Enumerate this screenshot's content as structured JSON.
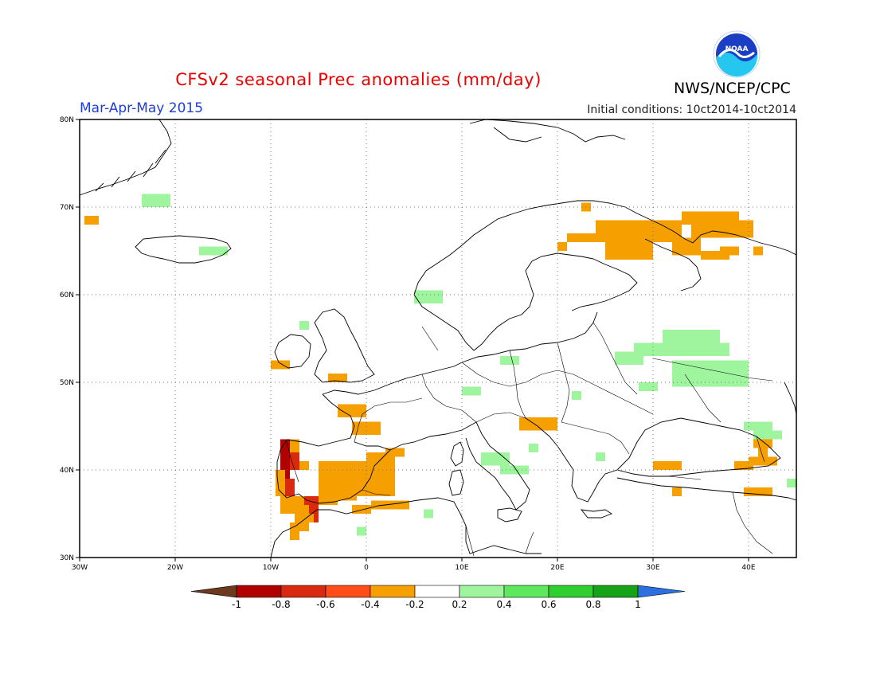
{
  "header": {
    "title": "CFSv2 seasonal Prec anomalies (mm/day)",
    "period": "Mar-Apr-May 2015",
    "initial_conditions": "Initial conditions: 10ct2014-10ct2014",
    "org": "NWS/NCEP/CPC",
    "logo_text": "NOAA"
  },
  "colors": {
    "title": "#ee0000",
    "period": "#1f3fd4",
    "brown": "#6b3a1f",
    "darkred": "#b00000",
    "red": "#d92a0f",
    "orangered": "#ff4d1a",
    "orange": "#f5a000",
    "white": "#ffffff",
    "palegreen": "#9ef59e",
    "green1": "#5ee85e",
    "green2": "#2fcf2f",
    "green3": "#17a317",
    "blue": "#2b6fe0"
  },
  "map": {
    "lon_range": [
      -30,
      45
    ],
    "lat_range": [
      30,
      80
    ],
    "lat_labels": [
      "30N",
      "40N",
      "50N",
      "60N",
      "70N",
      "80N"
    ],
    "lon_labels": [
      "30W",
      "20W",
      "10W",
      "0",
      "10E",
      "20E",
      "30E",
      "40E"
    ],
    "anomaly_cells": [
      {
        "lon": -29.5,
        "lat": 69,
        "w": 1.5,
        "h": 1,
        "c": "orange"
      },
      {
        "lon": -23.5,
        "lat": 71.5,
        "w": 3,
        "h": 1.5,
        "c": "palegreen"
      },
      {
        "lon": -17.5,
        "lat": 65.5,
        "w": 3,
        "h": 1,
        "c": "palegreen"
      },
      {
        "lon": 5,
        "lat": 60.5,
        "w": 3,
        "h": 1.5,
        "c": "palegreen"
      },
      {
        "lon": -7,
        "lat": 57,
        "w": 1,
        "h": 1,
        "c": "palegreen"
      },
      {
        "lon": -10,
        "lat": 52.5,
        "w": 2,
        "h": 1,
        "c": "orange"
      },
      {
        "lon": -4,
        "lat": 51,
        "w": 2,
        "h": 1,
        "c": "orange"
      },
      {
        "lon": -3,
        "lat": 47.5,
        "w": 3,
        "h": 1.5,
        "c": "orange"
      },
      {
        "lon": -1.5,
        "lat": 45.5,
        "w": 3,
        "h": 1.5,
        "c": "orange"
      },
      {
        "lon": 10,
        "lat": 49.5,
        "w": 2,
        "h": 1,
        "c": "palegreen"
      },
      {
        "lon": 14,
        "lat": 53,
        "w": 2,
        "h": 1,
        "c": "palegreen"
      },
      {
        "lon": 16,
        "lat": 46,
        "w": 4,
        "h": 1.5,
        "c": "orange"
      },
      {
        "lon": 12,
        "lat": 42,
        "w": 3,
        "h": 1.5,
        "c": "palegreen"
      },
      {
        "lon": 14,
        "lat": 40.5,
        "w": 3,
        "h": 1,
        "c": "palegreen"
      },
      {
        "lon": 17,
        "lat": 43,
        "w": 1,
        "h": 1,
        "c": "palegreen"
      },
      {
        "lon": 24,
        "lat": 42,
        "w": 1,
        "h": 1,
        "c": "palegreen"
      },
      {
        "lon": 21.5,
        "lat": 49,
        "w": 1,
        "h": 1,
        "c": "palegreen"
      },
      {
        "lon": -9,
        "lat": 43.5,
        "w": 1,
        "h": 4.5,
        "c": "darkred"
      },
      {
        "lon": -8,
        "lat": 42,
        "w": 1,
        "h": 2,
        "c": "red"
      },
      {
        "lon": -8.5,
        "lat": 39,
        "w": 1,
        "h": 2,
        "c": "red"
      },
      {
        "lon": -9.5,
        "lat": 40,
        "w": 1,
        "h": 3,
        "c": "orange"
      },
      {
        "lon": -8,
        "lat": 43.5,
        "w": 1,
        "h": 1.5,
        "c": "orange"
      },
      {
        "lon": -7,
        "lat": 41,
        "w": 1,
        "h": 1,
        "c": "orange"
      },
      {
        "lon": -5,
        "lat": 41,
        "w": 8,
        "h": 4,
        "c": "orange"
      },
      {
        "lon": 0,
        "lat": 42,
        "w": 3,
        "h": 2,
        "c": "orange"
      },
      {
        "lon": 2,
        "lat": 42.5,
        "w": 2,
        "h": 1,
        "c": "orange"
      },
      {
        "lon": -9,
        "lat": 37,
        "w": 3,
        "h": 2,
        "c": "orange"
      },
      {
        "lon": -6.5,
        "lat": 37,
        "w": 2,
        "h": 1,
        "c": "red"
      },
      {
        "lon": -6,
        "lat": 36,
        "w": 1,
        "h": 2,
        "c": "red"
      },
      {
        "lon": -5,
        "lat": 37,
        "w": 2,
        "h": 1,
        "c": "orange"
      },
      {
        "lon": -3,
        "lat": 37.5,
        "w": 2,
        "h": 1,
        "c": "orange"
      },
      {
        "lon": -7.5,
        "lat": 35,
        "w": 2,
        "h": 1,
        "c": "orange"
      },
      {
        "lon": -8,
        "lat": 34,
        "w": 2,
        "h": 1,
        "c": "orange"
      },
      {
        "lon": -8,
        "lat": 33,
        "w": 1,
        "h": 1,
        "c": "orange"
      },
      {
        "lon": -1.5,
        "lat": 36,
        "w": 2,
        "h": 1,
        "c": "orange"
      },
      {
        "lon": 0.5,
        "lat": 36.5,
        "w": 4,
        "h": 1,
        "c": "orange"
      },
      {
        "lon": 6,
        "lat": 35.5,
        "w": 1,
        "h": 1,
        "c": "palegreen"
      },
      {
        "lon": -1,
        "lat": 33.5,
        "w": 1,
        "h": 1,
        "c": "palegreen"
      },
      {
        "lon": 22.5,
        "lat": 70.5,
        "w": 1,
        "h": 1,
        "c": "orange"
      },
      {
        "lon": 21,
        "lat": 67,
        "w": 3,
        "h": 1,
        "c": "orange"
      },
      {
        "lon": 20,
        "lat": 66,
        "w": 1,
        "h": 1,
        "c": "orange"
      },
      {
        "lon": 24,
        "lat": 68.5,
        "w": 6,
        "h": 2.5,
        "c": "orange"
      },
      {
        "lon": 25,
        "lat": 66,
        "w": 5,
        "h": 2,
        "c": "orange"
      },
      {
        "lon": 30,
        "lat": 68.5,
        "w": 3,
        "h": 2.5,
        "c": "orange"
      },
      {
        "lon": 33,
        "lat": 69.5,
        "w": 6,
        "h": 1.5,
        "c": "orange"
      },
      {
        "lon": 34,
        "lat": 68,
        "w": 5,
        "h": 1.5,
        "c": "orange"
      },
      {
        "lon": 39,
        "lat": 68.5,
        "w": 1.5,
        "h": 2,
        "c": "orange"
      },
      {
        "lon": 32,
        "lat": 66.5,
        "w": 3,
        "h": 2,
        "c": "orange"
      },
      {
        "lon": 35,
        "lat": 65,
        "w": 3,
        "h": 1,
        "c": "orange"
      },
      {
        "lon": 37,
        "lat": 65.5,
        "w": 2,
        "h": 1,
        "c": "orange"
      },
      {
        "lon": 40.5,
        "lat": 65.5,
        "w": 1,
        "h": 1,
        "c": "orange"
      },
      {
        "lon": 31,
        "lat": 56,
        "w": 6,
        "h": 2,
        "c": "palegreen"
      },
      {
        "lon": 28,
        "lat": 54.5,
        "w": 10,
        "h": 1.5,
        "c": "palegreen"
      },
      {
        "lon": 26,
        "lat": 53.5,
        "w": 3,
        "h": 1.5,
        "c": "palegreen"
      },
      {
        "lon": 32,
        "lat": 52.5,
        "w": 8,
        "h": 1.5,
        "c": "palegreen"
      },
      {
        "lon": 32,
        "lat": 51,
        "w": 8,
        "h": 1.5,
        "c": "palegreen"
      },
      {
        "lon": 28.5,
        "lat": 50,
        "w": 2,
        "h": 1,
        "c": "palegreen"
      },
      {
        "lon": 39.5,
        "lat": 45.5,
        "w": 3,
        "h": 1,
        "c": "palegreen"
      },
      {
        "lon": 40.5,
        "lat": 44.5,
        "w": 3,
        "h": 1,
        "c": "palegreen"
      },
      {
        "lon": 40.5,
        "lat": 43.5,
        "w": 2,
        "h": 1,
        "c": "orange"
      },
      {
        "lon": 41,
        "lat": 42.5,
        "w": 1,
        "h": 1,
        "c": "orange"
      },
      {
        "lon": 40,
        "lat": 41.5,
        "w": 3,
        "h": 1,
        "c": "orange"
      },
      {
        "lon": 38.5,
        "lat": 41,
        "w": 2,
        "h": 1,
        "c": "orange"
      },
      {
        "lon": 30,
        "lat": 41,
        "w": 3,
        "h": 1,
        "c": "orange"
      },
      {
        "lon": 32,
        "lat": 38,
        "w": 1,
        "h": 1,
        "c": "orange"
      },
      {
        "lon": 39.5,
        "lat": 38,
        "w": 3,
        "h": 1,
        "c": "orange"
      },
      {
        "lon": 44,
        "lat": 39,
        "w": 1,
        "h": 1,
        "c": "palegreen"
      }
    ]
  },
  "legend": {
    "labels": [
      "-1",
      "-0.8",
      "-0.6",
      "-0.4",
      "-0.2",
      "0.2",
      "0.4",
      "0.6",
      "0.8",
      "1"
    ],
    "bins": [
      "darkred",
      "red",
      "orangered",
      "orange",
      "white",
      "palegreen",
      "green1",
      "green2",
      "green3"
    ],
    "left_arrow": "brown",
    "right_arrow": "blue"
  }
}
